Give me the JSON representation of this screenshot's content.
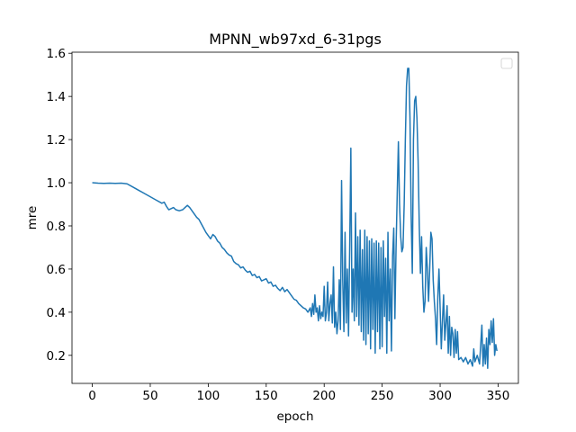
{
  "chart_data": {
    "type": "line",
    "title": "MPNN_wb97xd_6-31pgs",
    "x_label": "epoch",
    "y_label": "mre",
    "xlim": [
      -17.5,
      367.5
    ],
    "ylim": [
      0.07,
      1.605
    ],
    "xticks": [
      0,
      50,
      100,
      150,
      200,
      250,
      300,
      350
    ],
    "yticks": [
      0.2,
      0.4,
      0.6,
      0.8,
      {
        "value": 1,
        "label": "1.0"
      },
      1.2,
      1.4,
      1.6
    ],
    "legend": "upper right",
    "x": [
      0,
      5,
      10,
      15,
      20,
      25,
      30,
      35,
      40,
      45,
      50,
      55,
      60,
      62,
      64,
      66,
      68,
      70,
      72,
      75,
      78,
      80,
      82,
      84,
      86,
      88,
      90,
      92,
      94,
      96,
      98,
      100,
      102,
      104,
      106,
      108,
      110,
      112,
      114,
      116,
      118,
      120,
      122,
      124,
      126,
      128,
      130,
      132,
      134,
      136,
      138,
      140,
      142,
      144,
      146,
      148,
      150,
      152,
      154,
      156,
      158,
      160,
      162,
      164,
      166,
      168,
      170,
      172,
      174,
      176,
      178,
      180,
      182,
      184,
      186,
      188,
      189,
      190,
      191,
      192,
      193,
      194,
      195,
      196,
      197,
      198,
      199,
      200,
      201,
      202,
      203,
      204,
      205,
      206,
      207,
      208,
      209,
      210,
      211,
      212,
      213,
      214,
      215,
      216,
      217,
      218,
      219,
      220,
      221,
      222,
      223,
      224,
      225,
      226,
      227,
      228,
      229,
      230,
      231,
      232,
      233,
      234,
      235,
      236,
      237,
      238,
      239,
      240,
      241,
      242,
      243,
      244,
      245,
      246,
      247,
      248,
      249,
      250,
      251,
      252,
      253,
      254,
      255,
      256,
      257,
      258,
      259,
      260,
      261,
      262,
      263,
      264,
      265,
      266,
      267,
      268,
      269,
      270,
      271,
      272,
      273,
      274,
      275,
      276,
      277,
      278,
      279,
      280,
      281,
      282,
      283,
      284,
      285,
      286,
      287,
      288,
      289,
      290,
      291,
      292,
      293,
      294,
      295,
      296,
      297,
      298,
      299,
      300,
      301,
      302,
      303,
      304,
      305,
      306,
      307,
      308,
      309,
      310,
      311,
      312,
      313,
      314,
      315,
      316,
      318,
      320,
      322,
      324,
      326,
      328,
      329,
      330,
      332,
      334,
      336,
      337,
      338,
      339,
      340,
      341,
      342,
      343,
      344,
      345,
      346,
      347,
      348,
      349
    ],
    "series": [
      {
        "color": "#1f77b4",
        "values": [
          1.0,
          0.998,
          0.997,
          0.998,
          0.997,
          0.998,
          0.995,
          0.98,
          0.965,
          0.95,
          0.935,
          0.92,
          0.905,
          0.91,
          0.89,
          0.875,
          0.88,
          0.885,
          0.875,
          0.87,
          0.875,
          0.885,
          0.895,
          0.885,
          0.87,
          0.855,
          0.84,
          0.83,
          0.81,
          0.79,
          0.77,
          0.755,
          0.74,
          0.76,
          0.75,
          0.73,
          0.72,
          0.7,
          0.69,
          0.675,
          0.665,
          0.66,
          0.635,
          0.625,
          0.62,
          0.605,
          0.61,
          0.595,
          0.585,
          0.59,
          0.57,
          0.575,
          0.56,
          0.565,
          0.545,
          0.55,
          0.555,
          0.535,
          0.54,
          0.52,
          0.525,
          0.51,
          0.5,
          0.515,
          0.495,
          0.505,
          0.49,
          0.475,
          0.46,
          0.455,
          0.44,
          0.43,
          0.42,
          0.415,
          0.4,
          0.42,
          0.38,
          0.44,
          0.39,
          0.48,
          0.4,
          0.42,
          0.36,
          0.43,
          0.37,
          0.4,
          0.38,
          0.52,
          0.36,
          0.4,
          0.54,
          0.36,
          0.44,
          0.48,
          0.35,
          0.61,
          0.33,
          0.4,
          0.3,
          0.36,
          0.55,
          0.32,
          1.01,
          0.55,
          0.31,
          0.77,
          0.35,
          0.6,
          0.29,
          0.7,
          1.16,
          0.4,
          0.6,
          0.36,
          0.86,
          0.38,
          0.75,
          0.34,
          0.78,
          0.31,
          0.69,
          0.27,
          0.78,
          0.25,
          0.75,
          0.3,
          0.73,
          0.23,
          0.74,
          0.32,
          0.72,
          0.21,
          0.73,
          0.31,
          0.72,
          0.23,
          0.7,
          0.24,
          0.73,
          0.38,
          0.65,
          0.21,
          0.77,
          0.36,
          0.6,
          0.22,
          0.66,
          0.79,
          0.37,
          0.7,
          0.95,
          1.19,
          0.9,
          0.75,
          0.68,
          0.7,
          0.9,
          1.2,
          1.45,
          1.53,
          1.53,
          1.3,
          0.85,
          0.58,
          1.2,
          1.38,
          1.4,
          1.3,
          1.1,
          0.8,
          0.58,
          0.75,
          0.52,
          0.4,
          0.45,
          0.7,
          0.6,
          0.45,
          0.6,
          0.77,
          0.74,
          0.55,
          0.45,
          0.37,
          0.25,
          0.47,
          0.6,
          0.42,
          0.23,
          0.36,
          0.48,
          0.27,
          0.35,
          0.43,
          0.21,
          0.38,
          0.2,
          0.33,
          0.3,
          0.19,
          0.32,
          0.21,
          0.31,
          0.18,
          0.19,
          0.17,
          0.19,
          0.16,
          0.18,
          0.15,
          0.23,
          0.17,
          0.2,
          0.16,
          0.34,
          0.15,
          0.25,
          0.16,
          0.28,
          0.14,
          0.32,
          0.25,
          0.36,
          0.26,
          0.37,
          0.2,
          0.25,
          0.22
        ]
      }
    ]
  }
}
